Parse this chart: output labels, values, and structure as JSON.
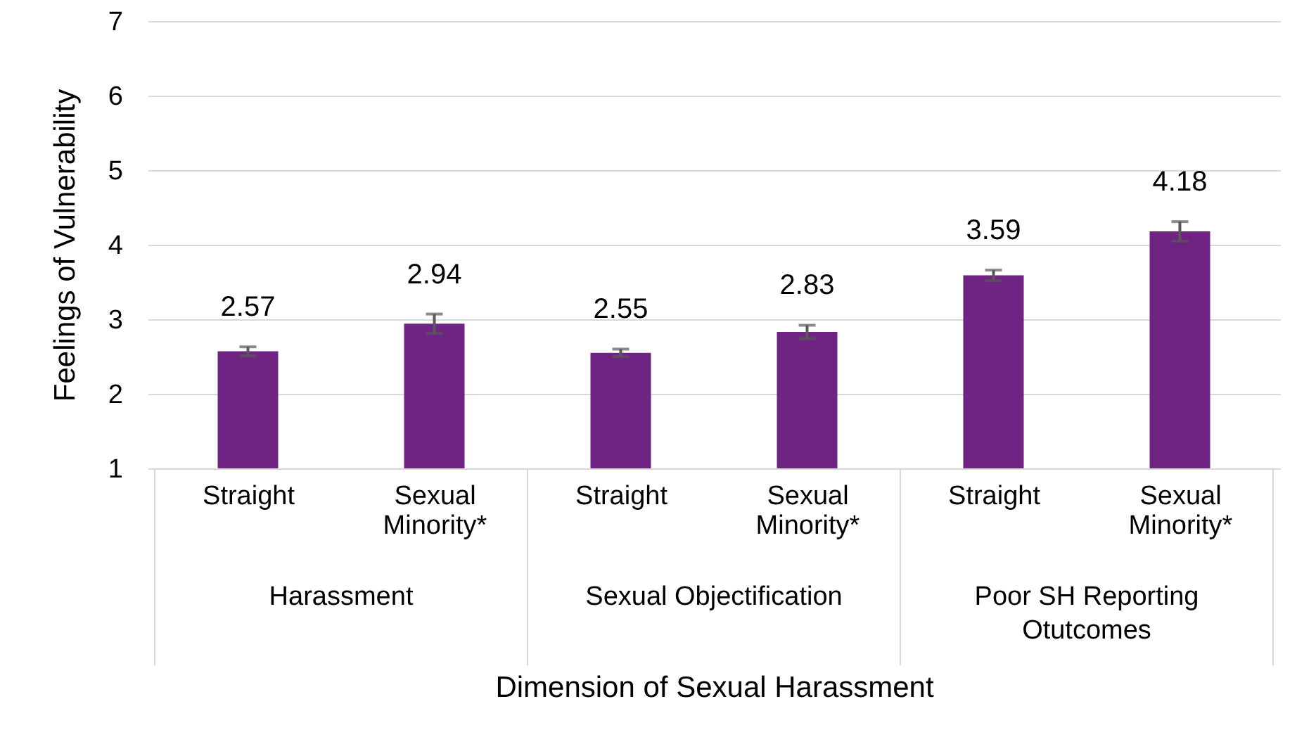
{
  "chart_data": {
    "type": "bar",
    "categories": [
      "Straight",
      "Sexual Minority*",
      "Straight",
      "Sexual Minority*",
      "Straight",
      "Sexual Minority*"
    ],
    "values": [
      2.57,
      2.94,
      2.55,
      2.83,
      3.59,
      4.18
    ],
    "errors": [
      0.06,
      0.13,
      0.05,
      0.09,
      0.07,
      0.13
    ],
    "color": "#6f2383",
    "ylabel": "Feelings of Vulnerability",
    "xlabel": "Dimension of Sexual Harassment",
    "ylim": [
      1,
      7
    ],
    "yticks": [
      1,
      2,
      3,
      4,
      5,
      6,
      7
    ],
    "grid": true,
    "data_labels": true,
    "annotations": [
      "Harassment",
      "Sexual Objectification",
      "Poor SH Reporting Otutcomes"
    ]
  }
}
